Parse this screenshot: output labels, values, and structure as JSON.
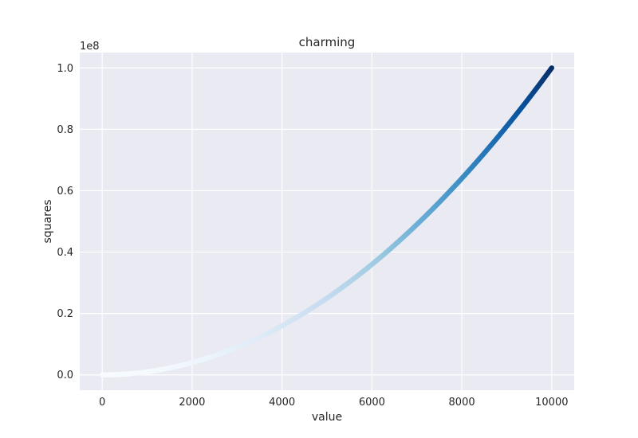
{
  "chart_data": {
    "type": "scatter",
    "title": "charming",
    "xlabel": "value",
    "ylabel": "squares",
    "y_offset_label": "1e8",
    "xlim": [
      -500,
      10500
    ],
    "ylim": [
      -0.05,
      1.05
    ],
    "xticks": [
      0,
      2000,
      4000,
      6000,
      8000,
      10000
    ],
    "xtick_labels": [
      "0",
      "2000",
      "4000",
      "6000",
      "8000",
      "10000"
    ],
    "yticks": [
      0.0,
      0.2,
      0.4,
      0.6,
      0.8,
      1.0
    ],
    "ytick_labels": [
      "0.0",
      "0.2",
      "0.4",
      "0.6",
      "0.8",
      "1.0"
    ],
    "grid": true,
    "series": [
      {
        "function": "y = x^2",
        "x_start": 1,
        "x_end": 10000,
        "colormap": "Blues"
      }
    ]
  },
  "style": {
    "plot_background": "#eaeaf2",
    "grid_color": "#ffffff",
    "text_color": "#262626",
    "colormap_stops": [
      "#f7fbff",
      "#deebf7",
      "#c6dbef",
      "#9ecae1",
      "#6baed6",
      "#4292c6",
      "#2171b5",
      "#08519c",
      "#08306b"
    ]
  }
}
